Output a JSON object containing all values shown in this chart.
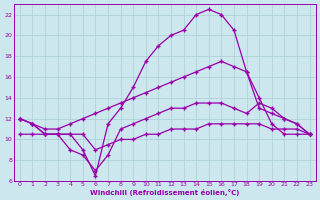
{
  "background_color": "#cce8ee",
  "grid_color": "#aacdd6",
  "line_color": "#9900aa",
  "xlabel": "Windchill (Refroidissement éolien,°C)",
  "xlim": [
    -0.5,
    23.5
  ],
  "ylim": [
    6,
    23
  ],
  "yticks": [
    6,
    8,
    10,
    12,
    14,
    16,
    18,
    20,
    22
  ],
  "xticks": [
    0,
    1,
    2,
    3,
    4,
    5,
    6,
    7,
    8,
    9,
    10,
    11,
    12,
    13,
    14,
    15,
    16,
    17,
    18,
    19,
    20,
    21,
    22,
    23
  ],
  "line1_x": [
    0,
    1,
    2,
    3,
    4,
    5,
    6,
    7,
    8,
    9,
    10,
    11,
    12,
    13,
    14,
    15,
    16,
    17,
    18,
    19,
    20,
    21,
    22,
    23
  ],
  "line1_y": [
    12.0,
    11.5,
    10.5,
    10.5,
    10.5,
    9.0,
    6.5,
    11.5,
    13.0,
    15.0,
    17.5,
    19.0,
    20.0,
    20.5,
    22.0,
    22.5,
    22.0,
    20.5,
    16.5,
    13.0,
    12.5,
    12.0,
    11.5,
    10.5
  ],
  "line2_x": [
    0,
    1,
    2,
    3,
    4,
    5,
    6,
    7,
    8,
    9,
    10,
    11,
    12,
    13,
    14,
    15,
    16,
    17,
    18,
    19,
    20,
    21,
    22,
    23
  ],
  "line2_y": [
    12.0,
    11.5,
    11.0,
    11.0,
    11.5,
    12.0,
    12.5,
    13.0,
    13.5,
    14.0,
    14.5,
    15.0,
    15.5,
    16.0,
    16.5,
    17.0,
    17.5,
    17.0,
    16.5,
    14.0,
    11.5,
    10.5,
    10.5,
    10.5
  ],
  "line3_x": [
    0,
    1,
    2,
    3,
    4,
    5,
    6,
    7,
    8,
    9,
    10,
    11,
    12,
    13,
    14,
    15,
    16,
    17,
    18,
    19,
    20,
    21,
    22,
    23
  ],
  "line3_y": [
    12.0,
    11.5,
    10.5,
    10.5,
    9.0,
    8.5,
    7.0,
    8.5,
    11.0,
    11.5,
    12.0,
    12.5,
    13.0,
    13.0,
    13.5,
    13.5,
    13.5,
    13.0,
    12.5,
    13.5,
    13.0,
    12.0,
    11.5,
    10.5
  ],
  "line4_x": [
    0,
    1,
    2,
    3,
    4,
    5,
    6,
    7,
    8,
    9,
    10,
    11,
    12,
    13,
    14,
    15,
    16,
    17,
    18,
    19,
    20,
    21,
    22,
    23
  ],
  "line4_y": [
    10.5,
    10.5,
    10.5,
    10.5,
    10.5,
    10.5,
    9.0,
    9.5,
    10.0,
    10.0,
    10.5,
    10.5,
    11.0,
    11.0,
    11.0,
    11.5,
    11.5,
    11.5,
    11.5,
    11.5,
    11.0,
    11.0,
    11.0,
    10.5
  ]
}
